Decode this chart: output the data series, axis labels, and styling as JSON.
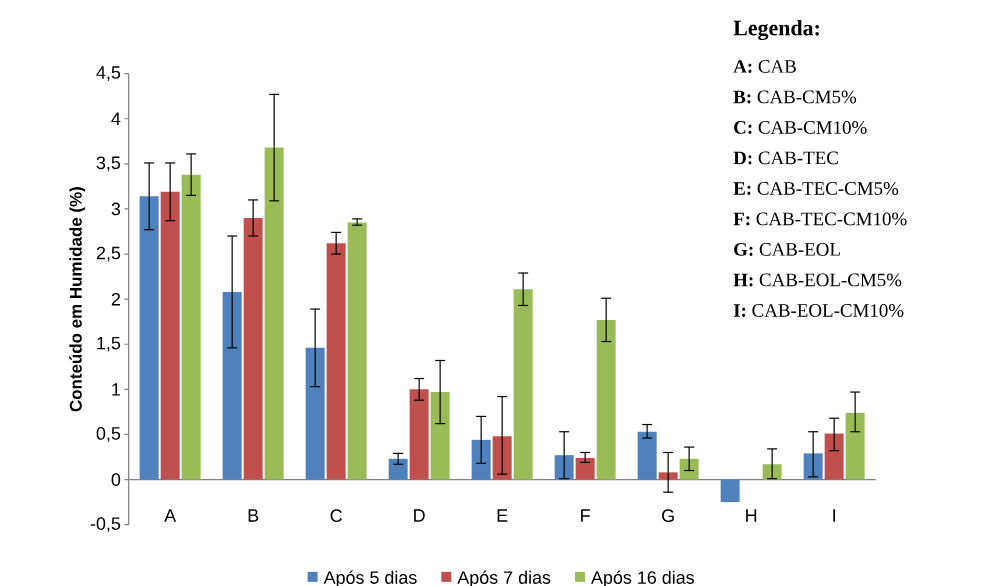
{
  "chart_data": {
    "type": "bar",
    "ylabel": "Conteúdo em Humidade (%)",
    "categories": [
      "A",
      "B",
      "C",
      "D",
      "E",
      "F",
      "G",
      "H",
      "I"
    ],
    "series": [
      {
        "name": "Após 5 dias",
        "color": "#4f81bd",
        "values": [
          3.14,
          2.08,
          1.46,
          0.23,
          0.44,
          0.27,
          0.53,
          -0.25,
          0.29
        ],
        "errors": [
          [
            2.77,
            3.51
          ],
          [
            1.46,
            2.7
          ],
          [
            1.03,
            1.89
          ],
          [
            0.17,
            0.29
          ],
          [
            0.18,
            0.7
          ],
          [
            0.01,
            0.53
          ],
          [
            0.46,
            0.61
          ],
          null,
          [
            0.03,
            0.53
          ]
        ]
      },
      {
        "name": "Após 7 dias",
        "color": "#c0504d",
        "values": [
          3.19,
          2.9,
          2.62,
          1.0,
          0.48,
          0.24,
          0.08,
          0,
          0.51
        ],
        "errors": [
          [
            2.87,
            3.51
          ],
          [
            2.7,
            3.1
          ],
          [
            2.5,
            2.74
          ],
          [
            0.88,
            1.12
          ],
          [
            0.06,
            0.92
          ],
          [
            0.19,
            0.3
          ],
          [
            -0.14,
            0.3
          ],
          null,
          [
            0.32,
            0.68
          ]
        ]
      },
      {
        "name": "Após 16 dias",
        "color": "#9bbb59",
        "values": [
          3.38,
          3.68,
          2.85,
          0.97,
          2.11,
          1.77,
          0.23,
          0.17,
          0.74
        ],
        "errors": [
          [
            3.15,
            3.61
          ],
          [
            3.09,
            4.27
          ],
          [
            2.82,
            2.89
          ],
          [
            0.62,
            1.32
          ],
          [
            1.93,
            2.29
          ],
          [
            1.53,
            2.01
          ],
          [
            0.1,
            0.36
          ],
          [
            0.01,
            0.34
          ],
          [
            0.53,
            0.97
          ]
        ]
      }
    ],
    "ylim": [
      -0.5,
      4.5
    ],
    "yticks": [
      {
        "value": -0.5,
        "label": "-0,5"
      },
      0,
      {
        "value": 0.5,
        "label": "0,5"
      },
      1,
      {
        "value": 1.5,
        "label": "1,5"
      },
      2,
      {
        "value": 2.5,
        "label": "2,5"
      },
      3,
      {
        "value": 3.5,
        "label": "3,5"
      },
      4,
      {
        "value": 4.5,
        "label": "4,5"
      }
    ],
    "legend": "bottom",
    "annotations": [
      "Legenda:",
      "**A:** CAB",
      "**B:** CAB-CM5%",
      "**C:** CAB-CM10%",
      "**D:** CAB-TEC",
      "**E:** CAB-TEC-CM5%",
      "**F:** CAB-TEC-CM10%",
      "**G:** CAB-EOL",
      "**H:** CAB-EOL-CM5%",
      "**I:** CAB-EOL-CM10%"
    ]
  }
}
